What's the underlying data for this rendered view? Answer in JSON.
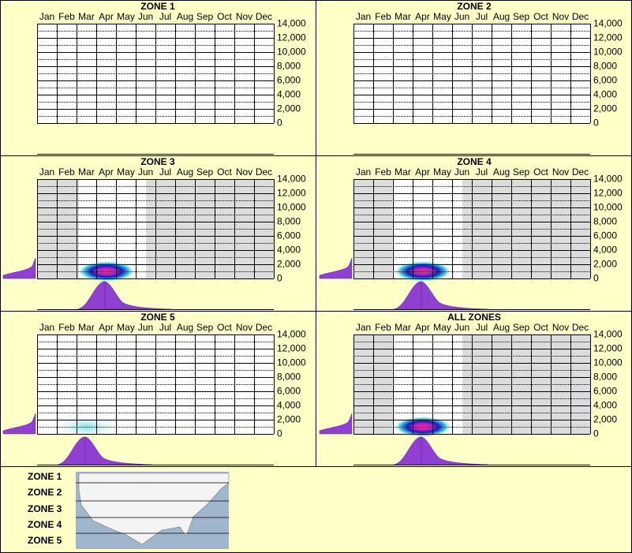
{
  "panels": [
    {
      "title": "ZONE 1"
    },
    {
      "title": "ZONE 2"
    },
    {
      "title": "ZONE 3"
    },
    {
      "title": "ZONE 4"
    },
    {
      "title": "ZONE 5"
    },
    {
      "title": "ALL ZONES"
    }
  ],
  "months": [
    "Jan",
    "Feb",
    "Mar",
    "Apr",
    "May",
    "Jun",
    "Jul",
    "Aug",
    "Sep",
    "Oct",
    "Nov",
    "Dec"
  ],
  "ylim": [
    0,
    14000
  ],
  "yticks": [
    0,
    {
      "value": 2000,
      "label": "2,000"
    },
    {
      "value": 4000,
      "label": "4,000"
    },
    {
      "value": 6000,
      "label": "6,000"
    },
    {
      "value": 8000,
      "label": "8,000"
    },
    {
      "value": 10000,
      "label": "10,000"
    },
    {
      "value": 12000,
      "label": "12,000"
    },
    {
      "value": 14000,
      "label": "14,000"
    }
  ],
  "legend": [
    "ZONE 1",
    "ZONE 2",
    "ZONE 3",
    "ZONE 4",
    "ZONE 5"
  ]
}
